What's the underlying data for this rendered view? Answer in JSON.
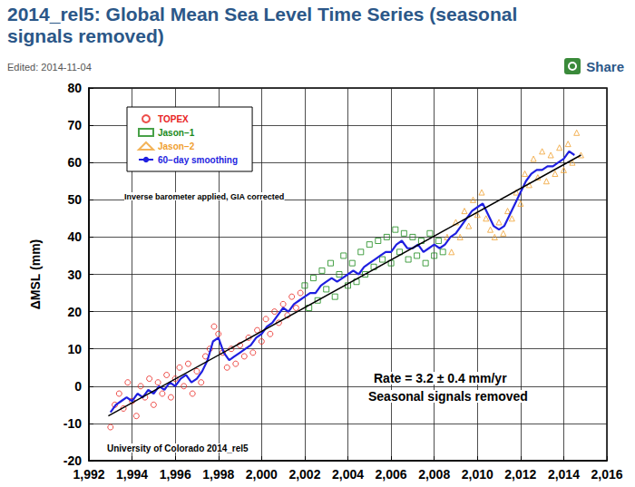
{
  "chart_data": {
    "type": "scatter",
    "title": "2014_rel5: Global Mean Sea Level Time Series (seasonal signals removed)",
    "subtitle": "Edited: 2014-11-04",
    "ylabel": "ΔMSL (mm)",
    "annotations": [
      "Inverse barometer applied, GIA corrected",
      "Rate = 3.2 ± 0.4 mm/yr",
      "Seasonal signals removed",
      "University of Colorado 2014_rel5",
      "Share"
    ],
    "xlim": [
      1992,
      2016
    ],
    "xticks": [
      1992,
      1994,
      1996,
      1998,
      2000,
      2002,
      2004,
      2006,
      2008,
      2010,
      2012,
      2014,
      2016
    ],
    "ylim": [
      -20,
      80
    ],
    "yticks": [
      -20,
      -10,
      0,
      10,
      20,
      30,
      40,
      50,
      60,
      70,
      80
    ],
    "grid": true,
    "legend": "upper left",
    "series": [
      {
        "name": "TOPEX",
        "type": "scatter",
        "marker": "circle",
        "color": "#e8231e",
        "x": [
          1993.0,
          1993.2,
          1993.4,
          1993.6,
          1993.8,
          1994.0,
          1994.2,
          1994.4,
          1994.6,
          1994.8,
          1995.0,
          1995.2,
          1995.4,
          1995.6,
          1995.8,
          1996.0,
          1996.2,
          1996.4,
          1996.6,
          1996.8,
          1997.0,
          1997.2,
          1997.4,
          1997.6,
          1997.8,
          1998.0,
          1998.2,
          1998.4,
          1998.6,
          1998.8,
          1999.0,
          1999.2,
          1999.4,
          1999.6,
          1999.8,
          2000.0,
          2000.2,
          2000.4,
          2000.6,
          2000.8,
          2001.0,
          2001.2,
          2001.4,
          2001.6,
          2001.8
        ],
        "values": [
          -11,
          -5,
          -2,
          -6,
          1,
          -4,
          -8,
          0,
          -3,
          2,
          -5,
          1,
          -2,
          3,
          -3,
          2,
          5,
          0,
          6,
          -2,
          4,
          1,
          8,
          10,
          16,
          14,
          9,
          5,
          10,
          6,
          11,
          8,
          13,
          9,
          15,
          12,
          18,
          14,
          20,
          17,
          22,
          19,
          24,
          21,
          25
        ]
      },
      {
        "name": "Jason−1",
        "type": "scatter",
        "marker": "square",
        "color": "#1a8a1a",
        "x": [
          2002.0,
          2002.2,
          2002.4,
          2002.6,
          2002.8,
          2003.0,
          2003.2,
          2003.4,
          2003.6,
          2003.8,
          2004.0,
          2004.2,
          2004.4,
          2004.6,
          2004.8,
          2005.0,
          2005.2,
          2005.4,
          2005.6,
          2005.8,
          2006.0,
          2006.2,
          2006.4,
          2006.6,
          2006.8,
          2007.0,
          2007.2,
          2007.4,
          2007.6,
          2007.8,
          2008.0,
          2008.2,
          2008.4
        ],
        "values": [
          27,
          21,
          29,
          23,
          31,
          26,
          33,
          24,
          30,
          35,
          27,
          33,
          28,
          36,
          30,
          38,
          32,
          39,
          34,
          40,
          33,
          42,
          36,
          41,
          34,
          40,
          35,
          39,
          33,
          41,
          35,
          39,
          36
        ]
      },
      {
        "name": "Jason−2",
        "type": "scatter",
        "marker": "triangle",
        "color": "#f0a030",
        "x": [
          2008.6,
          2008.8,
          2009.0,
          2009.2,
          2009.4,
          2009.6,
          2009.8,
          2010.0,
          2010.2,
          2010.4,
          2010.6,
          2010.8,
          2011.0,
          2011.2,
          2011.4,
          2011.6,
          2011.8,
          2012.0,
          2012.2,
          2012.4,
          2012.6,
          2012.8,
          2013.0,
          2013.2,
          2013.4,
          2013.6,
          2013.8,
          2014.0,
          2014.2,
          2014.4,
          2014.6,
          2014.8
        ],
        "values": [
          40,
          36,
          44,
          40,
          47,
          43,
          50,
          46,
          52,
          45,
          42,
          40,
          44,
          41,
          47,
          45,
          52,
          49,
          57,
          54,
          61,
          56,
          63,
          55,
          62,
          57,
          64,
          58,
          65,
          60,
          68,
          62
        ]
      },
      {
        "name": "60−day smoothing",
        "type": "line",
        "line_style": "solid",
        "color": "#1f1fe0",
        "x": [
          1993.0,
          1993.25,
          1993.5,
          1993.75,
          1994.0,
          1994.25,
          1994.5,
          1994.75,
          1995.0,
          1995.25,
          1995.5,
          1995.75,
          1996.0,
          1996.25,
          1996.5,
          1996.75,
          1997.0,
          1997.25,
          1997.5,
          1997.75,
          1998.0,
          1998.25,
          1998.5,
          1998.75,
          1999.0,
          1999.25,
          1999.5,
          1999.75,
          2000.0,
          2000.25,
          2000.5,
          2000.75,
          2001.0,
          2001.25,
          2001.5,
          2001.75,
          2002.0,
          2002.25,
          2002.5,
          2002.75,
          2003.0,
          2003.25,
          2003.5,
          2003.75,
          2004.0,
          2004.25,
          2004.5,
          2004.75,
          2005.0,
          2005.25,
          2005.5,
          2005.75,
          2006.0,
          2006.25,
          2006.5,
          2006.75,
          2007.0,
          2007.25,
          2007.5,
          2007.75,
          2008.0,
          2008.25,
          2008.5,
          2008.75,
          2009.0,
          2009.25,
          2009.5,
          2009.75,
          2010.0,
          2010.25,
          2010.5,
          2010.75,
          2011.0,
          2011.25,
          2011.5,
          2011.75,
          2012.0,
          2012.25,
          2012.5,
          2012.75,
          2013.0,
          2013.25,
          2013.5,
          2013.75,
          2014.0,
          2014.25,
          2014.5
        ],
        "values": [
          -7,
          -5,
          -4,
          -3,
          -4,
          -2,
          -3,
          -1,
          -2,
          0,
          -1,
          1,
          0,
          2,
          3,
          1,
          2,
          4,
          7,
          12,
          13,
          9,
          7,
          8,
          9,
          10,
          11,
          13,
          14,
          16,
          17,
          19,
          21,
          20,
          22,
          23,
          24,
          25,
          25,
          27,
          28,
          29,
          28,
          29,
          30,
          31,
          30,
          32,
          33,
          34,
          35,
          36,
          36,
          38,
          39,
          37,
          37,
          38,
          36,
          37,
          38,
          37,
          38,
          40,
          41,
          43,
          45,
          47,
          48,
          49,
          46,
          43,
          42,
          43,
          46,
          49,
          52,
          55,
          57,
          58,
          58,
          59,
          59,
          60,
          61,
          63,
          62
        ]
      },
      {
        "type": "line",
        "line_style": "solid",
        "color": "#000000",
        "x": [
          1992.9,
          2014.8
        ],
        "values": [
          -8,
          62
        ]
      }
    ]
  }
}
